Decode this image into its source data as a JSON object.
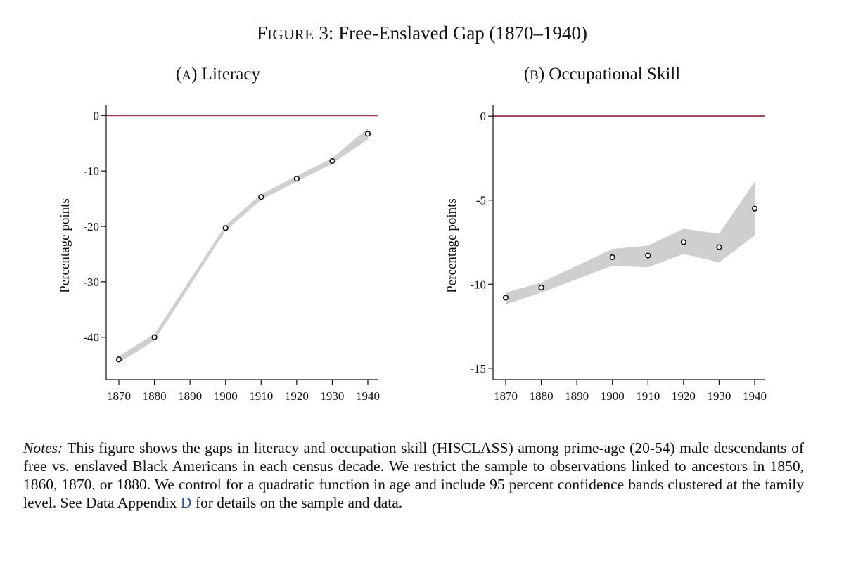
{
  "figure": {
    "title_first_letter": "F",
    "title_smallcaps": "IGURE",
    "title_rest": " 3: Free-Enslaved Gap (1870–1940)"
  },
  "notes": {
    "lead": "Notes:",
    "body": " This figure shows the gaps in literacy and occupation skill (HISCLASS) among prime-age (20-54) male descendants of free vs. enslaved Black Americans in each census decade. We restrict the sample to observations linked to ancestors in 1850, 1860, 1870, or 1880. We control for a quadratic function in age and include 95 percent confidence bands clustered at the family level. See Data Appendix ",
    "link_text": "D",
    "tail": " for details on the sample and data."
  },
  "colors": {
    "reference_line": "#b8324f",
    "band": "#cfcfcf",
    "marker": "#111111"
  },
  "chart_data": [
    {
      "type": "line",
      "panel_prefix": "(",
      "panel_letter_smallcaps": "A",
      "panel_suffix": ") Literacy",
      "title": "(A) Literacy",
      "xlabel": "",
      "ylabel": "Percentage points",
      "x": [
        1870,
        1880,
        1900,
        1910,
        1920,
        1930,
        1940
      ],
      "values": [
        -44,
        -40,
        -20.3,
        -14.7,
        -11.4,
        -8.2,
        -3.3
      ],
      "ci_lower": [
        -44.6,
        -40.6,
        -20.8,
        -15.2,
        -11.9,
        -8.7,
        -4.3
      ],
      "ci_upper": [
        -43.4,
        -39.4,
        -19.8,
        -14.2,
        -10.9,
        -7.7,
        -2.3
      ],
      "xticks": [
        1870,
        1880,
        1890,
        1900,
        1910,
        1920,
        1930,
        1940
      ],
      "yticks": [
        0,
        -10,
        -20,
        -30,
        -40
      ],
      "xlim": [
        1870,
        1940
      ],
      "ylim": [
        -46.5,
        0.8
      ],
      "reference_line_y": 0,
      "grid": false
    },
    {
      "type": "line",
      "panel_prefix": "(",
      "panel_letter_smallcaps": "B",
      "panel_suffix": ") Occupational Skill",
      "title": "(B) Occupational Skill",
      "xlabel": "",
      "ylabel": "Percentage points",
      "x": [
        1870,
        1880,
        1900,
        1910,
        1920,
        1930,
        1940
      ],
      "values": [
        -10.8,
        -10.2,
        -8.4,
        -8.3,
        -7.5,
        -7.8,
        -5.5
      ],
      "ci_lower": [
        -11.2,
        -10.5,
        -8.9,
        -9.0,
        -8.2,
        -8.7,
        -7.1
      ],
      "ci_upper": [
        -10.5,
        -9.9,
        -7.9,
        -7.7,
        -6.7,
        -7.0,
        -3.9
      ],
      "xticks": [
        1870,
        1880,
        1890,
        1900,
        1910,
        1920,
        1930,
        1940
      ],
      "yticks": [
        0,
        -5,
        -10,
        -15
      ],
      "xlim": [
        1870,
        1940
      ],
      "ylim": [
        -15.3,
        0.3
      ],
      "reference_line_y": 0,
      "grid": false
    }
  ]
}
